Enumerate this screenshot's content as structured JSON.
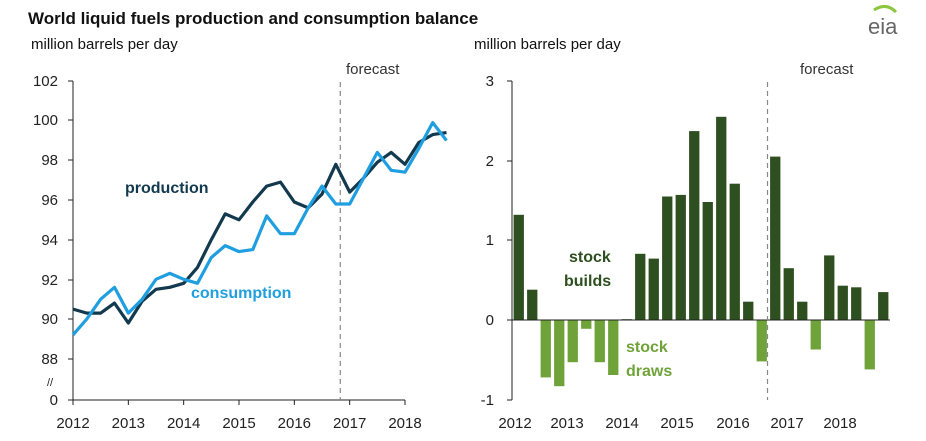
{
  "title": "World liquid fuels production and consumption balance",
  "logo": {
    "text": "eia",
    "accent": "#8cc63f"
  },
  "colors": {
    "production": "#12394e",
    "consumption": "#1f9ee0",
    "builds": "#2e4f1f",
    "draws": "#6fa33a",
    "axis": "#222222",
    "forecast_line": "#888888"
  },
  "chart_data": [
    {
      "type": "line",
      "units": "million barrels per day",
      "forecast_label": "forecast",
      "forecast_start": 2016.83,
      "y_ticks": [
        "102",
        "100",
        "98",
        "96",
        "94",
        "92",
        "90",
        "88",
        "0"
      ],
      "axis_break_symbol": "//",
      "x_ticks": [
        "2012",
        "2013",
        "2014",
        "2015",
        "2016",
        "2017",
        "2018"
      ],
      "x_range": [
        2012,
        2018.75
      ],
      "series": [
        {
          "name": "production",
          "label": "production",
          "x": [
            2012.0,
            2012.25,
            2012.5,
            2012.75,
            2013.0,
            2013.25,
            2013.5,
            2013.75,
            2014.0,
            2014.25,
            2014.5,
            2014.75,
            2015.0,
            2015.25,
            2015.5,
            2015.75,
            2016.0,
            2016.25,
            2016.5,
            2016.75,
            2017.0,
            2017.25,
            2017.5,
            2017.75,
            2018.0,
            2018.25,
            2018.5,
            2018.75
          ],
          "values": [
            90.5,
            90.3,
            90.3,
            90.8,
            89.8,
            90.9,
            91.5,
            91.6,
            91.8,
            92.6,
            94.0,
            95.3,
            95.0,
            95.9,
            96.7,
            96.9,
            95.9,
            95.6,
            96.3,
            97.8,
            96.4,
            97.1,
            97.9,
            98.4,
            97.8,
            98.9,
            99.3,
            99.4
          ]
        },
        {
          "name": "consumption",
          "label": "consumption",
          "x": [
            2012.0,
            2012.25,
            2012.5,
            2012.75,
            2013.0,
            2013.25,
            2013.5,
            2013.75,
            2014.0,
            2014.25,
            2014.5,
            2014.75,
            2015.0,
            2015.25,
            2015.5,
            2015.75,
            2016.0,
            2016.25,
            2016.5,
            2016.75,
            2017.0,
            2017.25,
            2017.5,
            2017.75,
            2018.0,
            2018.25,
            2018.5,
            2018.75
          ],
          "values": [
            89.2,
            90.0,
            91.0,
            91.6,
            90.3,
            91.0,
            92.0,
            92.3,
            92.0,
            91.8,
            93.1,
            93.7,
            93.4,
            93.5,
            95.2,
            94.3,
            94.3,
            95.6,
            96.7,
            95.8,
            95.8,
            97.1,
            98.4,
            97.5,
            97.4,
            98.6,
            99.9,
            99.0
          ]
        }
      ]
    },
    {
      "type": "bar",
      "units": "million barrels per day",
      "forecast_label": "forecast",
      "y_ticks": [
        "3",
        "2",
        "1",
        "0",
        "-1"
      ],
      "x_ticks": [
        "2012",
        "2013",
        "2014",
        "2015",
        "2016",
        "2017",
        "2018"
      ],
      "labels": {
        "builds": [
          "stock",
          "builds"
        ],
        "draws": [
          "stock",
          "draws"
        ]
      },
      "categories": [
        "2012Q1",
        "2012Q2",
        "2012Q3",
        "2012Q4",
        "2013Q1",
        "2013Q2",
        "2013Q3",
        "2013Q4",
        "2014Q1",
        "2014Q2",
        "2014Q3",
        "2014Q4",
        "2015Q1",
        "2015Q2",
        "2015Q3",
        "2015Q4",
        "2016Q1",
        "2016Q2",
        "2016Q3",
        "2016Q4",
        "2017Q1",
        "2017Q2",
        "2017Q3",
        "2017Q4",
        "2018Q1",
        "2018Q2",
        "2018Q3",
        "2018Q4"
      ],
      "values": [
        1.32,
        0.38,
        -0.72,
        -0.83,
        -0.53,
        -0.11,
        -0.53,
        -0.69,
        0.01,
        0.83,
        0.77,
        1.55,
        1.57,
        2.37,
        1.48,
        2.55,
        1.71,
        0.23,
        -0.52,
        2.05,
        0.65,
        0.23,
        -0.37,
        0.81,
        0.43,
        0.41,
        -0.62,
        0.35
      ]
    }
  ]
}
